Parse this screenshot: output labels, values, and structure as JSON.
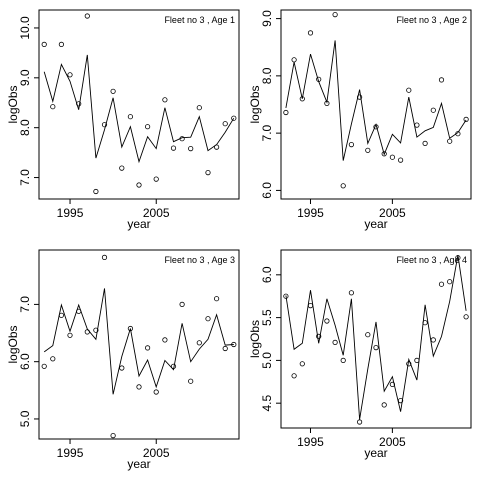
{
  "chart_data": [
    {
      "type": "scatter",
      "title": "Fleet no 3 , Age 1",
      "xlabel": "year",
      "ylabel": "logObs",
      "xlim": [
        1991.4,
        2014.6
      ],
      "ylim": [
        6.57,
        10.36
      ],
      "xticks": [
        1995,
        2005
      ],
      "xtick_labels": [
        "1995",
        "2005"
      ],
      "yticks": [
        7,
        8,
        9,
        10
      ],
      "ytick_labels": [
        "7.0",
        "8.0",
        "9.0",
        "10.0"
      ],
      "x": [
        1992,
        1993,
        1994,
        1995,
        1996,
        1997,
        1998,
        1999,
        2000,
        2001,
        2002,
        2003,
        2004,
        2005,
        2006,
        2007,
        2008,
        2009,
        2010,
        2011,
        2012,
        2013,
        2014
      ],
      "observed": [
        9.67,
        8.42,
        9.67,
        9.06,
        8.48,
        10.24,
        6.72,
        8.06,
        8.73,
        7.19,
        8.22,
        6.85,
        8.02,
        6.97,
        8.56,
        7.59,
        7.78,
        7.58,
        8.4,
        7.1,
        7.61,
        8.08,
        8.19
      ],
      "fitted": [
        9.12,
        8.53,
        9.27,
        8.93,
        8.36,
        9.46,
        7.39,
        7.96,
        8.6,
        7.61,
        8.02,
        7.32,
        7.82,
        7.58,
        8.4,
        7.72,
        7.8,
        7.81,
        8.22,
        7.54,
        7.66,
        7.91,
        8.19
      ]
    },
    {
      "type": "scatter",
      "title": "Fleet no 3 , Age 2",
      "xlabel": "year",
      "ylabel": "logObs",
      "xlim": [
        1991.4,
        2014.6
      ],
      "ylim": [
        5.85,
        9.15
      ],
      "xticks": [
        1995,
        2005
      ],
      "xtick_labels": [
        "1995",
        "2005"
      ],
      "yticks": [
        6,
        7,
        8,
        9
      ],
      "ytick_labels": [
        "6.0",
        "7.0",
        "8.0",
        "9.0"
      ],
      "x": [
        1992,
        1993,
        1994,
        1995,
        1996,
        1997,
        1998,
        1999,
        2000,
        2001,
        2002,
        2003,
        2004,
        2005,
        2006,
        2007,
        2008,
        2009,
        2010,
        2011,
        2012,
        2013,
        2014
      ],
      "observed": [
        7.36,
        8.28,
        7.6,
        8.75,
        7.94,
        7.52,
        9.07,
        6.08,
        6.8,
        7.63,
        6.7,
        7.11,
        6.64,
        6.58,
        6.53,
        7.75,
        7.14,
        6.82,
        7.4,
        7.93,
        6.86,
        6.99,
        7.24
      ],
      "fitted": [
        7.44,
        8.24,
        7.6,
        8.38,
        7.9,
        7.54,
        8.62,
        6.52,
        7.16,
        7.76,
        6.82,
        7.15,
        6.63,
        6.98,
        6.83,
        7.63,
        6.93,
        7.04,
        7.1,
        7.52,
        6.91,
        7.01,
        7.23
      ]
    },
    {
      "type": "scatter",
      "title": "Fleet no 3 , Age 3",
      "xlabel": "year",
      "ylabel": "logObs",
      "xlim": [
        1991.4,
        2014.6
      ],
      "ylim": [
        4.65,
        7.95
      ],
      "xticks": [
        1995,
        2005
      ],
      "xtick_labels": [
        "1995",
        "2005"
      ],
      "yticks": [
        5,
        6,
        7
      ],
      "ytick_labels": [
        "5.0",
        "6.0",
        "7.0"
      ],
      "x": [
        1992,
        1993,
        1994,
        1995,
        1996,
        1997,
        1998,
        1999,
        2000,
        2001,
        2002,
        2003,
        2004,
        2005,
        2006,
        2007,
        2008,
        2009,
        2010,
        2011,
        2012,
        2013,
        2014
      ],
      "observed": [
        5.92,
        6.05,
        6.81,
        6.46,
        6.88,
        6.52,
        6.55,
        7.82,
        4.71,
        5.89,
        6.58,
        5.56,
        6.24,
        5.47,
        6.38,
        5.92,
        7.0,
        5.66,
        6.33,
        6.75,
        7.1,
        6.23,
        6.3
      ],
      "fitted": [
        6.17,
        6.28,
        6.99,
        6.53,
        6.99,
        6.57,
        6.39,
        7.28,
        5.43,
        6.09,
        6.58,
        5.75,
        6.03,
        5.56,
        6.02,
        5.86,
        6.67,
        6.0,
        6.22,
        6.39,
        6.82,
        6.29,
        6.3
      ]
    },
    {
      "type": "scatter",
      "title": "Fleet no 3 , Age 4",
      "xlabel": "year",
      "ylabel": "logObs",
      "xlim": [
        1991.4,
        2014.6
      ],
      "ylim": [
        4.21,
        6.29
      ],
      "xticks": [
        1995,
        2005
      ],
      "xtick_labels": [
        "1995",
        "2005"
      ],
      "yticks": [
        4.5,
        5.0,
        5.5,
        6.0
      ],
      "ytick_labels": [
        "4.5",
        "5.0",
        "5.5",
        "6.0"
      ],
      "x": [
        1992,
        1993,
        1994,
        1995,
        1996,
        1997,
        1998,
        1999,
        2000,
        2001,
        2002,
        2003,
        2004,
        2005,
        2006,
        2007,
        2008,
        2009,
        2010,
        2011,
        2012,
        2013,
        2014
      ],
      "observed": [
        5.75,
        4.82,
        4.96,
        5.64,
        5.28,
        5.46,
        5.21,
        5.0,
        5.79,
        4.28,
        5.3,
        5.15,
        4.48,
        4.72,
        4.53,
        4.96,
        5.0,
        5.44,
        5.24,
        5.89,
        5.92,
        6.2,
        5.51
      ],
      "fitted": [
        5.76,
        5.13,
        5.2,
        5.82,
        5.2,
        5.72,
        5.41,
        5.06,
        5.72,
        4.31,
        4.9,
        5.45,
        4.64,
        4.81,
        4.4,
        5.01,
        4.77,
        5.65,
        5.05,
        5.28,
        5.69,
        6.23,
        5.58
      ]
    }
  ]
}
